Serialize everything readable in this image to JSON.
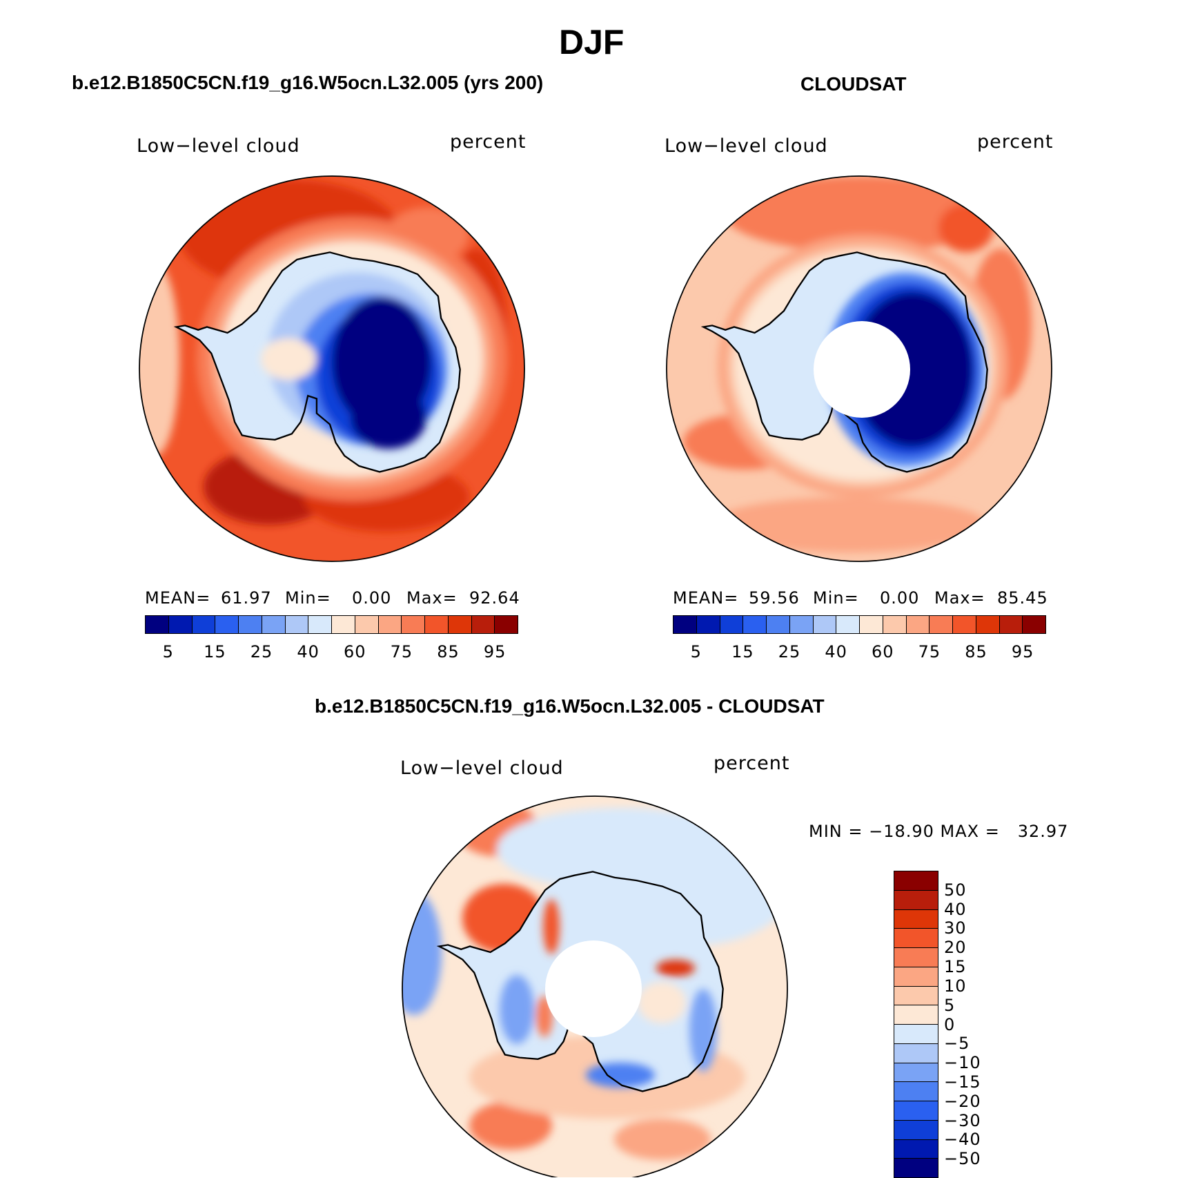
{
  "figure_title": "DJF",
  "panels": [
    {
      "id": "model",
      "title": "b.e12.B1850C5CN.f19_g16.W5ocn.L32.005 (yrs 200)",
      "variable": "Low−level cloud",
      "units": "percent",
      "stats": {
        "mean_label": "MEAN=",
        "mean": "61.97",
        "min_label": "Min=",
        "min": "0.00",
        "max_label": "Max=",
        "max": "92.64"
      }
    },
    {
      "id": "obs",
      "title": "CLOUDSAT",
      "variable": "Low−level cloud",
      "units": "percent",
      "stats": {
        "mean_label": "MEAN=",
        "mean": "59.56",
        "min_label": "Min=",
        "min": "0.00",
        "max_label": "Max=",
        "max": "85.45"
      }
    },
    {
      "id": "diff",
      "title": "b.e12.B1850C5CN.f19_g16.W5ocn.L32.005 - CLOUDSAT",
      "variable": "Low−level cloud",
      "units": "percent",
      "stats_text": "MIN = −18.90 MAX =   32.97"
    }
  ],
  "colorbar_abs": {
    "colors": [
      "#000080",
      "#0019b0",
      "#0f3fd8",
      "#2a60f0",
      "#4d80f2",
      "#7aa3f5",
      "#aec8f7",
      "#d8e9fb",
      "#fde8d6",
      "#fcc9ac",
      "#fba683",
      "#f87c55",
      "#f2552a",
      "#de3608",
      "#b81e0b",
      "#8a0000"
    ],
    "tick_labels": [
      "5",
      "15",
      "25",
      "40",
      "60",
      "75",
      "85",
      "95"
    ]
  },
  "colorbar_diff": {
    "colors": [
      "#8a0000",
      "#b81e0b",
      "#de3608",
      "#f2552a",
      "#f87c55",
      "#fba683",
      "#fcc9ac",
      "#fde8d6",
      "#d8e9fb",
      "#aec8f7",
      "#7aa3f5",
      "#4d80f2",
      "#2a60f0",
      "#0f3fd8",
      "#0019b0",
      "#000080"
    ],
    "tick_labels": [
      "50",
      "40",
      "30",
      "20",
      "15",
      "10",
      "5",
      "0",
      "−5",
      "−10",
      "−15",
      "−20",
      "−30",
      "−40",
      "−50"
    ]
  }
}
